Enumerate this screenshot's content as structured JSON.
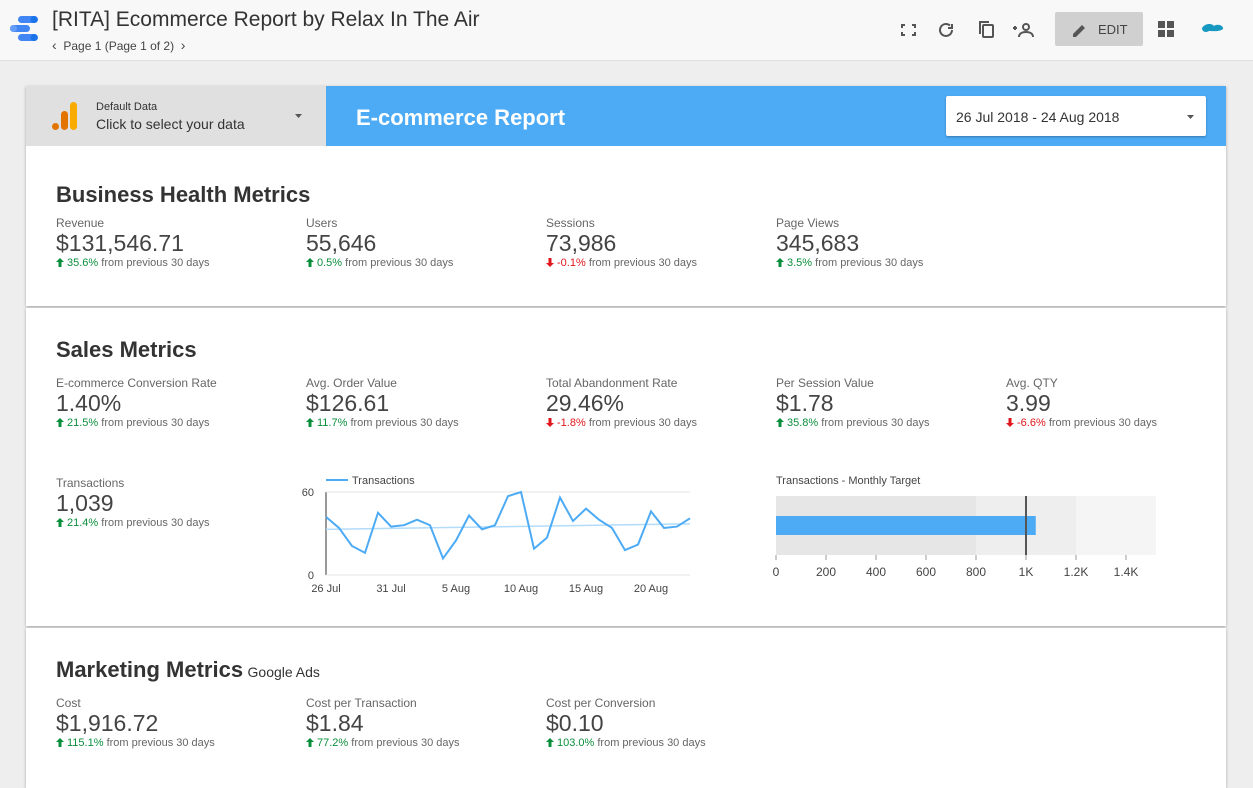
{
  "header": {
    "title": "[RITA] Ecommerce Report by Relax In The Air",
    "page": "Page 1 (Page 1 of 2)",
    "edit": "EDIT"
  },
  "datasource": {
    "label": "Default Data",
    "action": "Click to select your data"
  },
  "banner": {
    "title": "E-commerce Report",
    "date_range": "26 Jul 2018 - 24 Aug 2018"
  },
  "business": {
    "title": "Business Health Metrics",
    "metrics": [
      {
        "label": "Revenue",
        "value": "$131,546.71",
        "change": "35.6%",
        "trend": "up",
        "note": "from previous 30 days"
      },
      {
        "label": "Users",
        "value": "55,646",
        "change": "0.5%",
        "trend": "up",
        "note": "from previous 30 days"
      },
      {
        "label": "Sessions",
        "value": "73,986",
        "change": "-0.1%",
        "trend": "down",
        "note": "from previous 30 days"
      },
      {
        "label": "Page Views",
        "value": "345,683",
        "change": "3.5%",
        "trend": "up",
        "note": "from previous 30 days"
      }
    ]
  },
  "sales": {
    "title": "Sales Metrics",
    "metrics": [
      {
        "label": "E-commerce Conversion Rate",
        "value": "1.40%",
        "change": "21.5%",
        "trend": "up",
        "note": "from previous 30 days"
      },
      {
        "label": "Avg. Order Value",
        "value": "$126.61",
        "change": "11.7%",
        "trend": "up",
        "note": "from previous 30 days"
      },
      {
        "label": "Total Abandonment Rate",
        "value": "29.46%",
        "change": "-1.8%",
        "trend": "down",
        "note": "from previous 30 days"
      },
      {
        "label": "Per Session Value",
        "value": "$1.78",
        "change": "35.8%",
        "trend": "up",
        "note": "from previous 30 days"
      },
      {
        "label": "Avg. QTY",
        "value": "3.99",
        "change": "-6.6%",
        "trend": "down",
        "note": "from previous 30 days"
      },
      {
        "label": "Transactions",
        "value": "1,039",
        "change": "21.4%",
        "trend": "up",
        "note": "from previous 30 days"
      }
    ]
  },
  "chart_data": [
    {
      "type": "line",
      "categories": [
        "26 Jul",
        null,
        null,
        null,
        null,
        "31 Jul",
        null,
        null,
        null,
        null,
        "5 Aug",
        null,
        null,
        null,
        null,
        "10 Aug",
        null,
        null,
        null,
        null,
        "15 Aug",
        null,
        null,
        null,
        null,
        "20 Aug",
        null,
        null,
        null
      ],
      "series": [
        {
          "name": "Transactions",
          "color": "#4dabf5",
          "values": [
            42,
            34,
            21,
            16,
            45,
            35,
            36,
            40,
            36,
            12,
            25,
            43,
            33,
            36,
            57,
            60,
            19,
            27,
            56,
            39,
            48,
            40,
            34,
            18,
            22,
            46,
            34,
            35,
            41
          ]
        }
      ],
      "trendline": [
        33,
        37
      ],
      "trendline_color": "#b3dcfb",
      "ylim": [
        0,
        60
      ],
      "yticks": [
        0,
        60
      ]
    },
    {
      "type": "bullet",
      "title": "Transactions - Monthly Target",
      "value": 1039,
      "target": 1000,
      "color": "#4dabf5",
      "ranges": [
        800,
        1200,
        1520
      ],
      "range_colors": [
        "#e6e6e6",
        "#eeeeee",
        "#f5f5f5"
      ],
      "xlim": [
        0,
        1520
      ],
      "xticks": [
        0,
        200,
        400,
        600,
        800,
        {
          "value": 1000,
          "label": "1K"
        },
        {
          "value": 1200,
          "label": "1.2K"
        },
        {
          "value": 1400,
          "label": "1.4K"
        }
      ]
    }
  ],
  "marketing": {
    "title": "Marketing Metrics",
    "subtitle": "Google Ads",
    "metrics": [
      {
        "label": "Cost",
        "value": "$1,916.72",
        "change": "115.1%",
        "trend": "up",
        "note": "from previous 30 days"
      },
      {
        "label": "Cost per Transaction",
        "value": "$1.84",
        "change": "77.2%",
        "trend": "up",
        "note": "from previous 30 days"
      },
      {
        "label": "Cost per Conversion",
        "value": "$0.10",
        "change": "103.0%",
        "trend": "up",
        "note": "from previous 30 days"
      }
    ]
  }
}
